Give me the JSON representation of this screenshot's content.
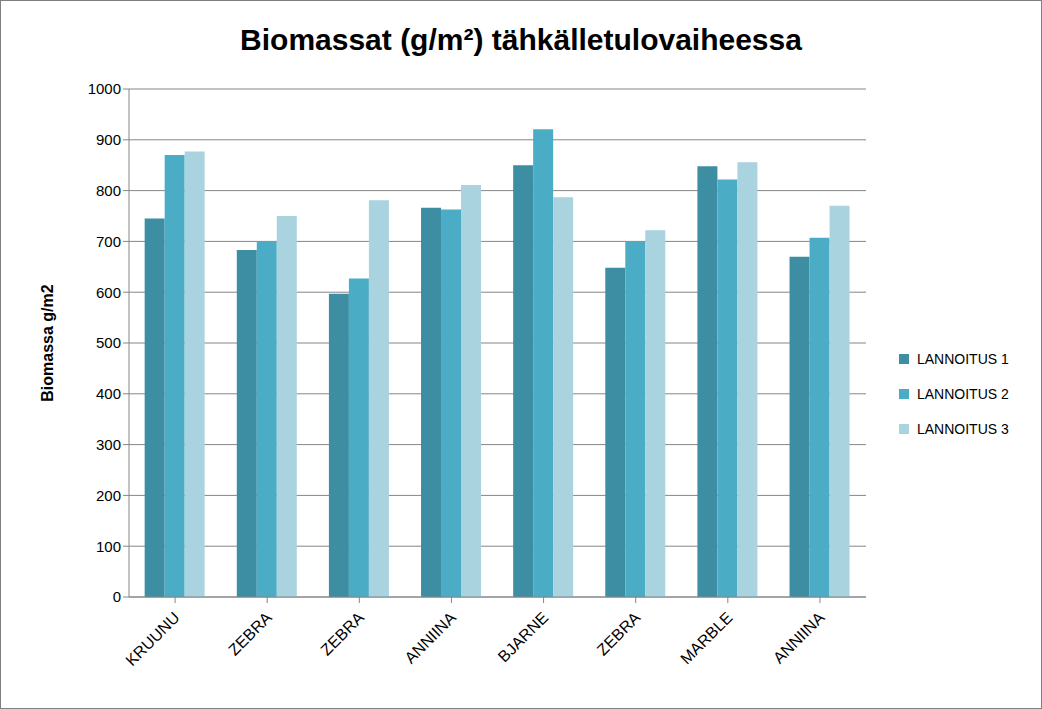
{
  "chart_data": {
    "type": "bar",
    "title": "Biomassat (g/m²) tähkälletulovaiheessa",
    "y_label": "Biomassa g/m2",
    "categories": [
      "KRUUNU",
      "ZEBRA",
      "ZEBRA",
      "ANNIINA",
      "BJARNE",
      "ZEBRA",
      "MARBLE",
      "ANNIINA"
    ],
    "series": [
      {
        "name": "LANNOITUS 1",
        "color": "#3d8ea3",
        "values": [
          745,
          683,
          597,
          766,
          850,
          648,
          848,
          670
        ]
      },
      {
        "name": "LANNOITUS 2",
        "color": "#4bacc6",
        "values": [
          870,
          700,
          627,
          763,
          921,
          700,
          822,
          707
        ]
      },
      {
        "name": "LANNOITUS 3",
        "color": "#a9d3df",
        "values": [
          877,
          750,
          781,
          811,
          787,
          722,
          856,
          770
        ]
      }
    ],
    "ylim": [
      0,
      1000
    ],
    "yticks": [
      0,
      100,
      200,
      300,
      400,
      500,
      600,
      700,
      800,
      900,
      1000
    ],
    "grid": true,
    "legend": "right"
  }
}
